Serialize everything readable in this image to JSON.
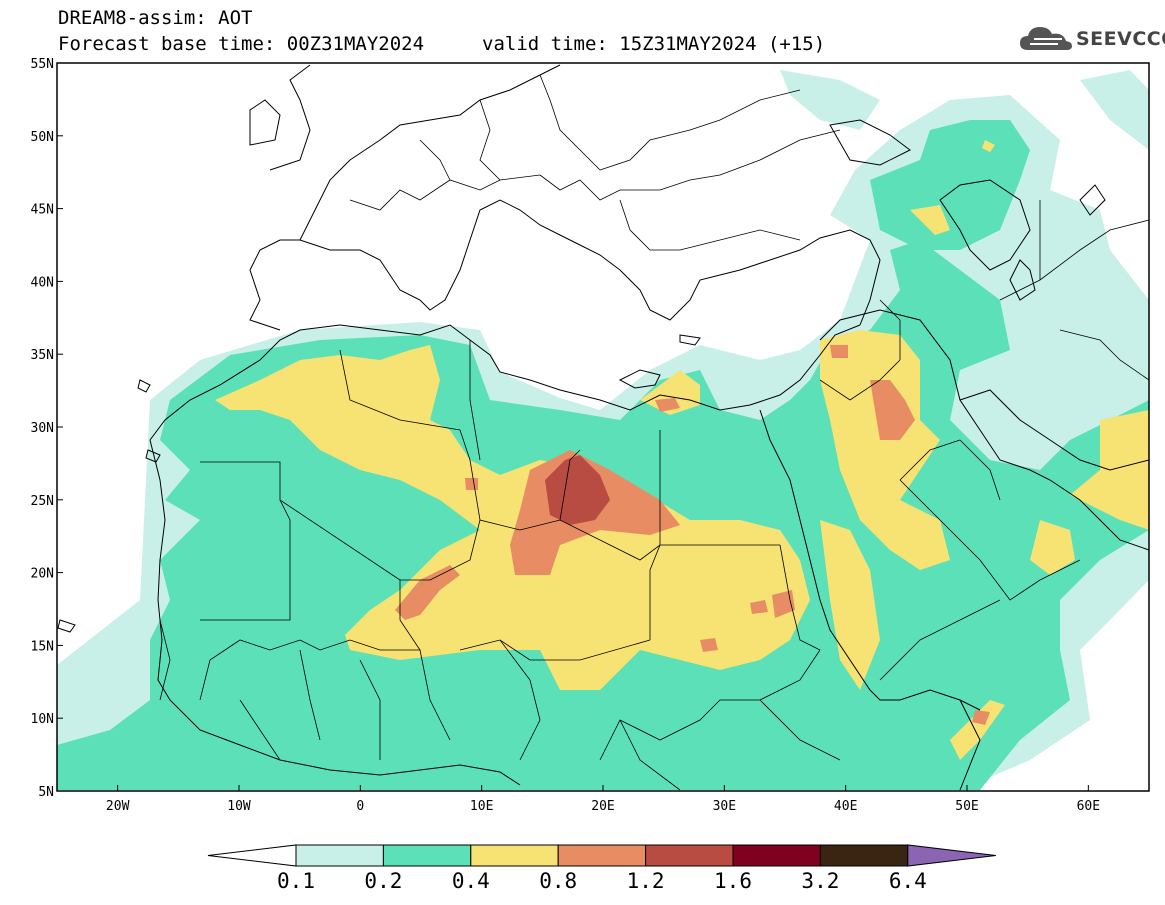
{
  "header": {
    "title": "DREAM8-assim: AOT",
    "base_time": "Forecast base time: 00Z31MAY2024",
    "valid_time": "valid time: 15Z31MAY2024 (+15)"
  },
  "logo": {
    "text": "SEEVCCC",
    "icon": "cloud-icon"
  },
  "map": {
    "projection": "lat-lon",
    "lon_range": [
      -25,
      65
    ],
    "lat_range": [
      5,
      55
    ],
    "lat_ticks": [
      "5N",
      "10N",
      "15N",
      "20N",
      "25N",
      "30N",
      "35N",
      "40N",
      "45N",
      "50N",
      "55N"
    ],
    "lon_ticks": [
      "20W",
      "10W",
      "0",
      "10E",
      "20E",
      "30E",
      "40E",
      "50E",
      "60E"
    ]
  },
  "colorbar": {
    "labels": [
      "0.1",
      "0.2",
      "0.4",
      "0.8",
      "1.2",
      "1.6",
      "3.2",
      "6.4"
    ],
    "colors": [
      "#ffffff",
      "#c8f0e8",
      "#5be0b8",
      "#f7e274",
      "#e88c64",
      "#b84c42",
      "#800020",
      "#3a2412",
      "#8c64b4"
    ]
  }
}
